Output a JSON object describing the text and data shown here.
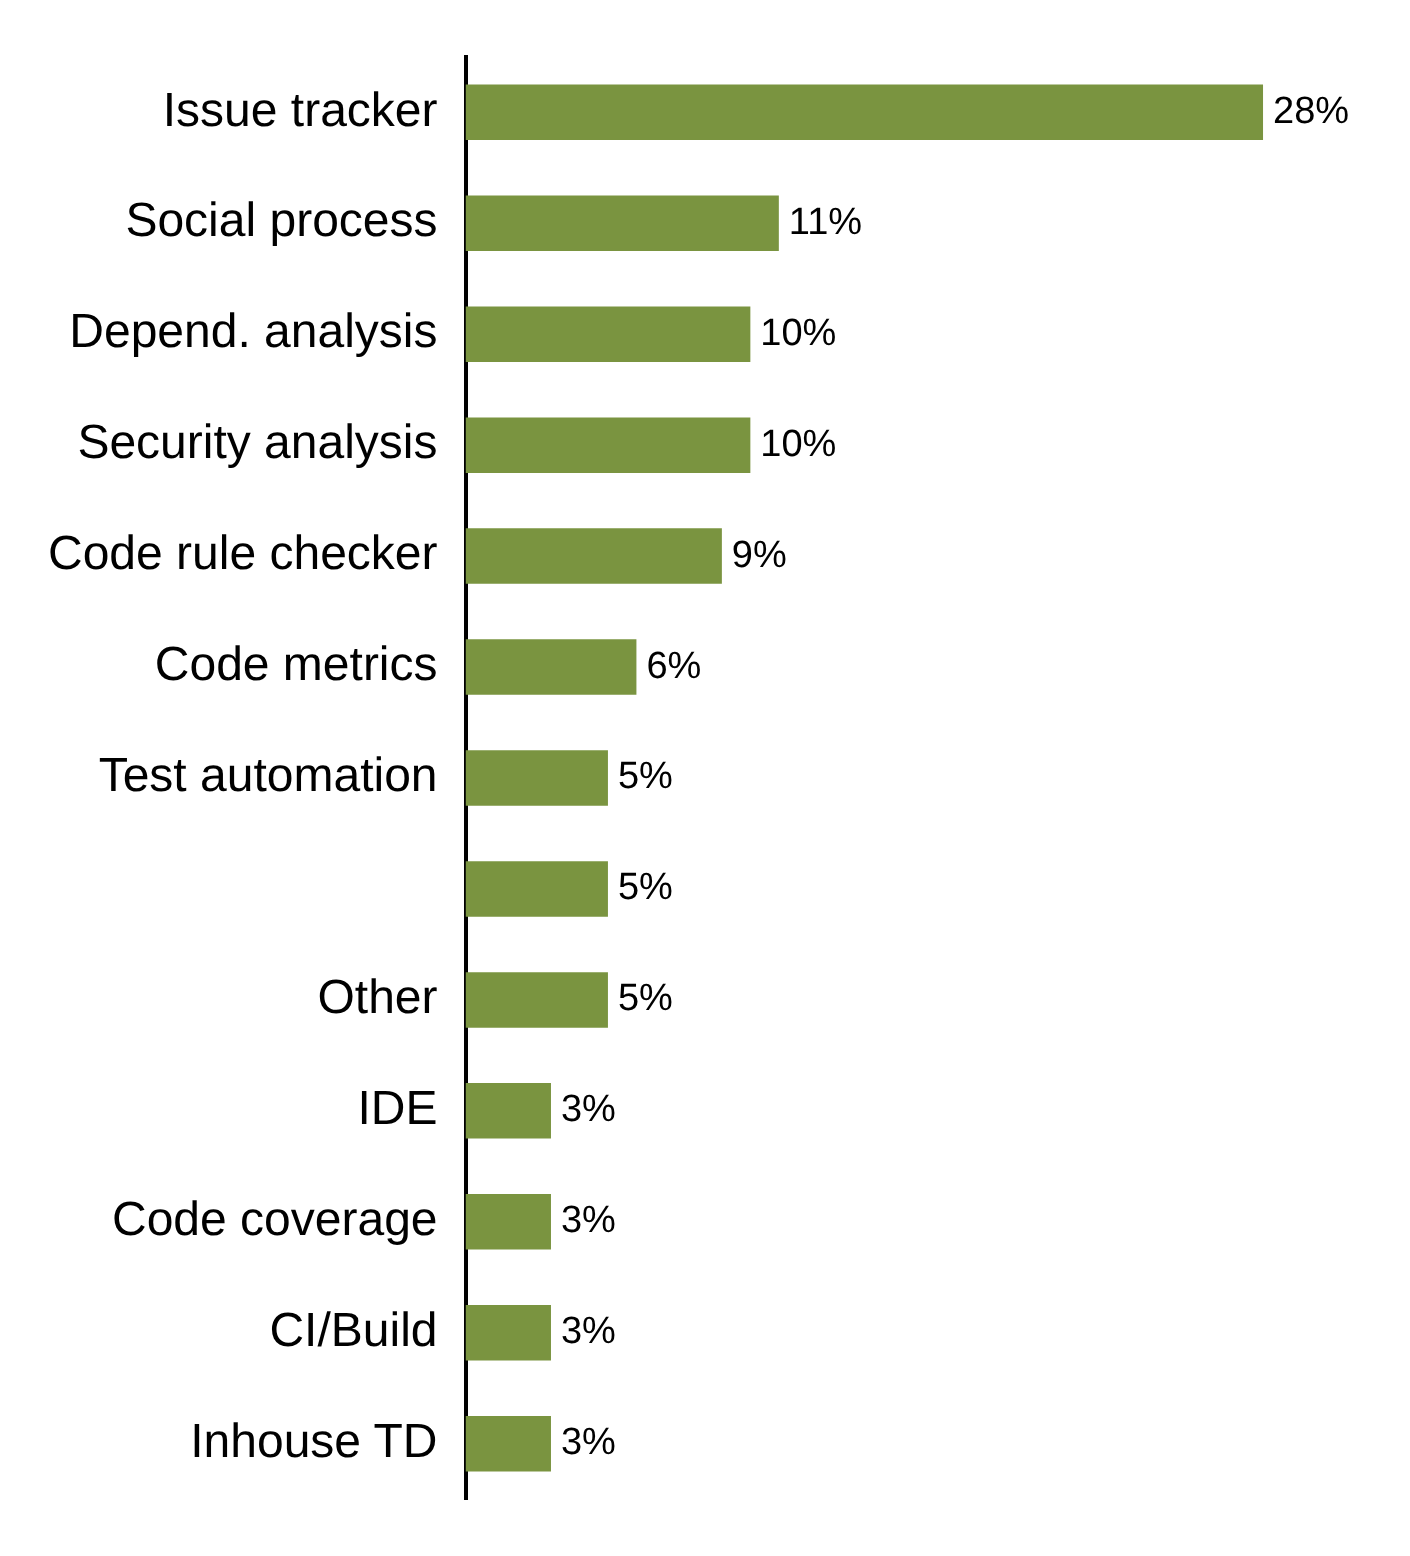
{
  "chart_data": {
    "type": "bar",
    "orientation": "horizontal",
    "categories": [
      "Issue tracker",
      "Social process",
      "Depend. analysis",
      "Security analysis",
      "Code rule checker",
      "Code metrics",
      "Test automation",
      null,
      "Other",
      "IDE",
      "Code coverage",
      "CI/Build",
      "Inhouse TD"
    ],
    "values": [
      28,
      11,
      10,
      10,
      9,
      6,
      5,
      5,
      5,
      3,
      3,
      3,
      3
    ],
    "value_labels": [
      "28%",
      "11%",
      "10%",
      "10%",
      "9%",
      "6%",
      "5%",
      "5%",
      "5%",
      "3%",
      "3%",
      "3%",
      "3%"
    ],
    "color": "#7a9440",
    "grid": false
  }
}
